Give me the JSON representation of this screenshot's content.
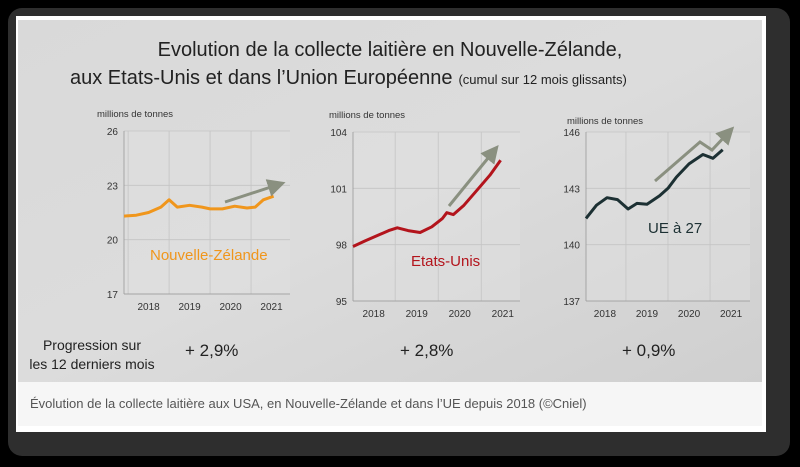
{
  "title": {
    "line1": "Evolution de la collecte laitière en Nouvelle-Zélande,",
    "line2": "aux Etats-Unis et dans l’Union Européenne",
    "line2_note": "(cumul sur 12 mois glissants)"
  },
  "progression_label": [
    "Progression sur",
    "les 12 derniers mois"
  ],
  "caption": "Évolution de la collecte laitière aux USA, en Nouvelle-Zélande et dans l’UE depuis 2018 (©Cniel)",
  "chart_data": [
    {
      "type": "line",
      "ylabel": "millions de tonnes",
      "series_label": "Nouvelle-Zélande",
      "color": "#f0961c",
      "progression": "+ 2,9%",
      "yticks": [
        17,
        20,
        23,
        26
      ],
      "ylim": [
        17,
        26
      ],
      "xticks": [
        "2018",
        "2019",
        "2020",
        "2021"
      ],
      "xlim": [
        2017.9,
        2021.95
      ],
      "x": [
        2017.9,
        2018.2,
        2018.5,
        2018.8,
        2019.0,
        2019.2,
        2019.5,
        2019.8,
        2020.0,
        2020.3,
        2020.6,
        2020.9,
        2021.1,
        2021.3,
        2021.55
      ],
      "y": [
        21.3,
        21.35,
        21.5,
        21.8,
        22.2,
        21.8,
        21.9,
        21.8,
        21.7,
        21.7,
        21.85,
        21.75,
        21.8,
        22.2,
        22.4
      ]
    },
    {
      "type": "line",
      "ylabel": "millions de tonnes",
      "series_label": "Etats-Unis",
      "color": "#b3141c",
      "progression": "+ 2,8%",
      "yticks": [
        95,
        98,
        101,
        104
      ],
      "ylim": [
        95,
        104
      ],
      "xticks": [
        "2018",
        "2019",
        "2020",
        "2021"
      ],
      "xlim": [
        2018.02,
        2021.9
      ],
      "x": [
        2018.02,
        2018.3,
        2018.6,
        2018.85,
        2019.05,
        2019.3,
        2019.58,
        2019.85,
        2020.1,
        2020.2,
        2020.35,
        2020.6,
        2020.9,
        2021.2,
        2021.45
      ],
      "y": [
        97.9,
        98.2,
        98.5,
        98.75,
        98.9,
        98.75,
        98.65,
        98.95,
        99.4,
        99.7,
        99.6,
        100.1,
        100.9,
        101.7,
        102.5
      ]
    },
    {
      "type": "line",
      "ylabel": "millions de tonnes",
      "series_label": "UE à 27",
      "color": "#1c3033",
      "progression": "+ 0,9%",
      "yticks": [
        137,
        140,
        143,
        146
      ],
      "ylim": [
        137,
        146
      ],
      "xticks": [
        "2018",
        "2019",
        "2020",
        "2021"
      ],
      "xlim": [
        2018.05,
        2021.95
      ],
      "x": [
        2018.05,
        2018.3,
        2018.55,
        2018.8,
        2019.05,
        2019.26,
        2019.5,
        2019.8,
        2020.0,
        2020.2,
        2020.5,
        2020.83,
        2021.07,
        2021.3
      ],
      "y": [
        141.4,
        142.1,
        142.5,
        142.4,
        141.9,
        142.2,
        142.15,
        142.6,
        143.0,
        143.6,
        144.3,
        144.8,
        144.6,
        145.05
      ]
    }
  ]
}
